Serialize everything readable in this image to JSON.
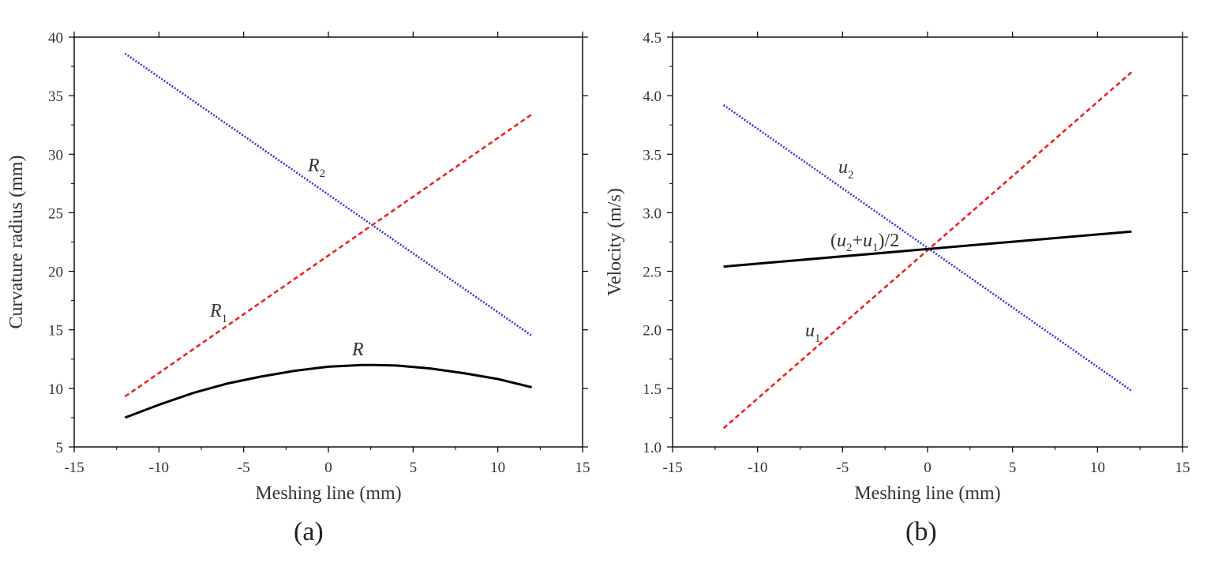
{
  "panels": [
    {
      "caption": "(a)",
      "chart_data": {
        "type": "line",
        "xlabel": "Meshing line (mm)",
        "ylabel": "Curvature radius (mm)",
        "xlim": [
          -15,
          15
        ],
        "ylim": [
          5,
          40
        ],
        "x_ticks": [
          -15,
          -10,
          -5,
          0,
          5,
          10,
          15
        ],
        "y_ticks": [
          5,
          10,
          15,
          20,
          25,
          30,
          35,
          40
        ],
        "grid": false,
        "series": [
          {
            "name": "R2",
            "label_main": "R",
            "label_sub": "2",
            "color": "#3333dd",
            "style": "dotted",
            "x": [
              -12,
              12
            ],
            "y": [
              38.6,
              14.5
            ]
          },
          {
            "name": "R1",
            "label_main": "R",
            "label_sub": "1",
            "color": "#ee2222",
            "style": "dashed",
            "x": [
              -12,
              12
            ],
            "y": [
              9.3,
              33.4
            ]
          },
          {
            "name": "R",
            "label_main": "R",
            "label_sub": "",
            "color": "#000000",
            "style": "solid",
            "x": [
              -12,
              -10,
              -8,
              -6,
              -4,
              -2,
              0,
              2,
              2.7,
              4,
              6,
              8,
              10,
              12
            ],
            "y": [
              7.5,
              8.6,
              9.6,
              10.4,
              11.0,
              11.5,
              11.85,
              12.0,
              12.0,
              11.95,
              11.7,
              11.3,
              10.8,
              10.1
            ]
          }
        ]
      }
    },
    {
      "caption": "(b)",
      "chart_data": {
        "type": "line",
        "xlabel": "Meshing line (mm)",
        "ylabel": "Velocity (m/s)",
        "xlim": [
          -15,
          15
        ],
        "ylim": [
          1.0,
          4.5
        ],
        "x_ticks": [
          -15,
          -10,
          -5,
          0,
          5,
          10,
          15
        ],
        "y_ticks": [
          "1.0",
          "1.5",
          "2.0",
          "2.5",
          "3.0",
          "3.5",
          "4.0",
          "4.5"
        ],
        "grid": false,
        "series": [
          {
            "name": "u2",
            "label_main": "u",
            "label_sub": "2",
            "color": "#3333dd",
            "style": "dotted",
            "x": [
              -12,
              12
            ],
            "y": [
              3.92,
              1.48
            ]
          },
          {
            "name": "u1",
            "label_main": "u",
            "label_sub": "1",
            "color": "#ee2222",
            "style": "dashed",
            "x": [
              -12,
              12
            ],
            "y": [
              1.16,
              4.2
            ]
          },
          {
            "name": "(u2+u1)/2",
            "label_main": "(u2+u1)/2",
            "label_sub": "",
            "color": "#000000",
            "style": "solid",
            "x": [
              -12,
              12
            ],
            "y": [
              2.54,
              2.84
            ]
          }
        ]
      }
    }
  ]
}
